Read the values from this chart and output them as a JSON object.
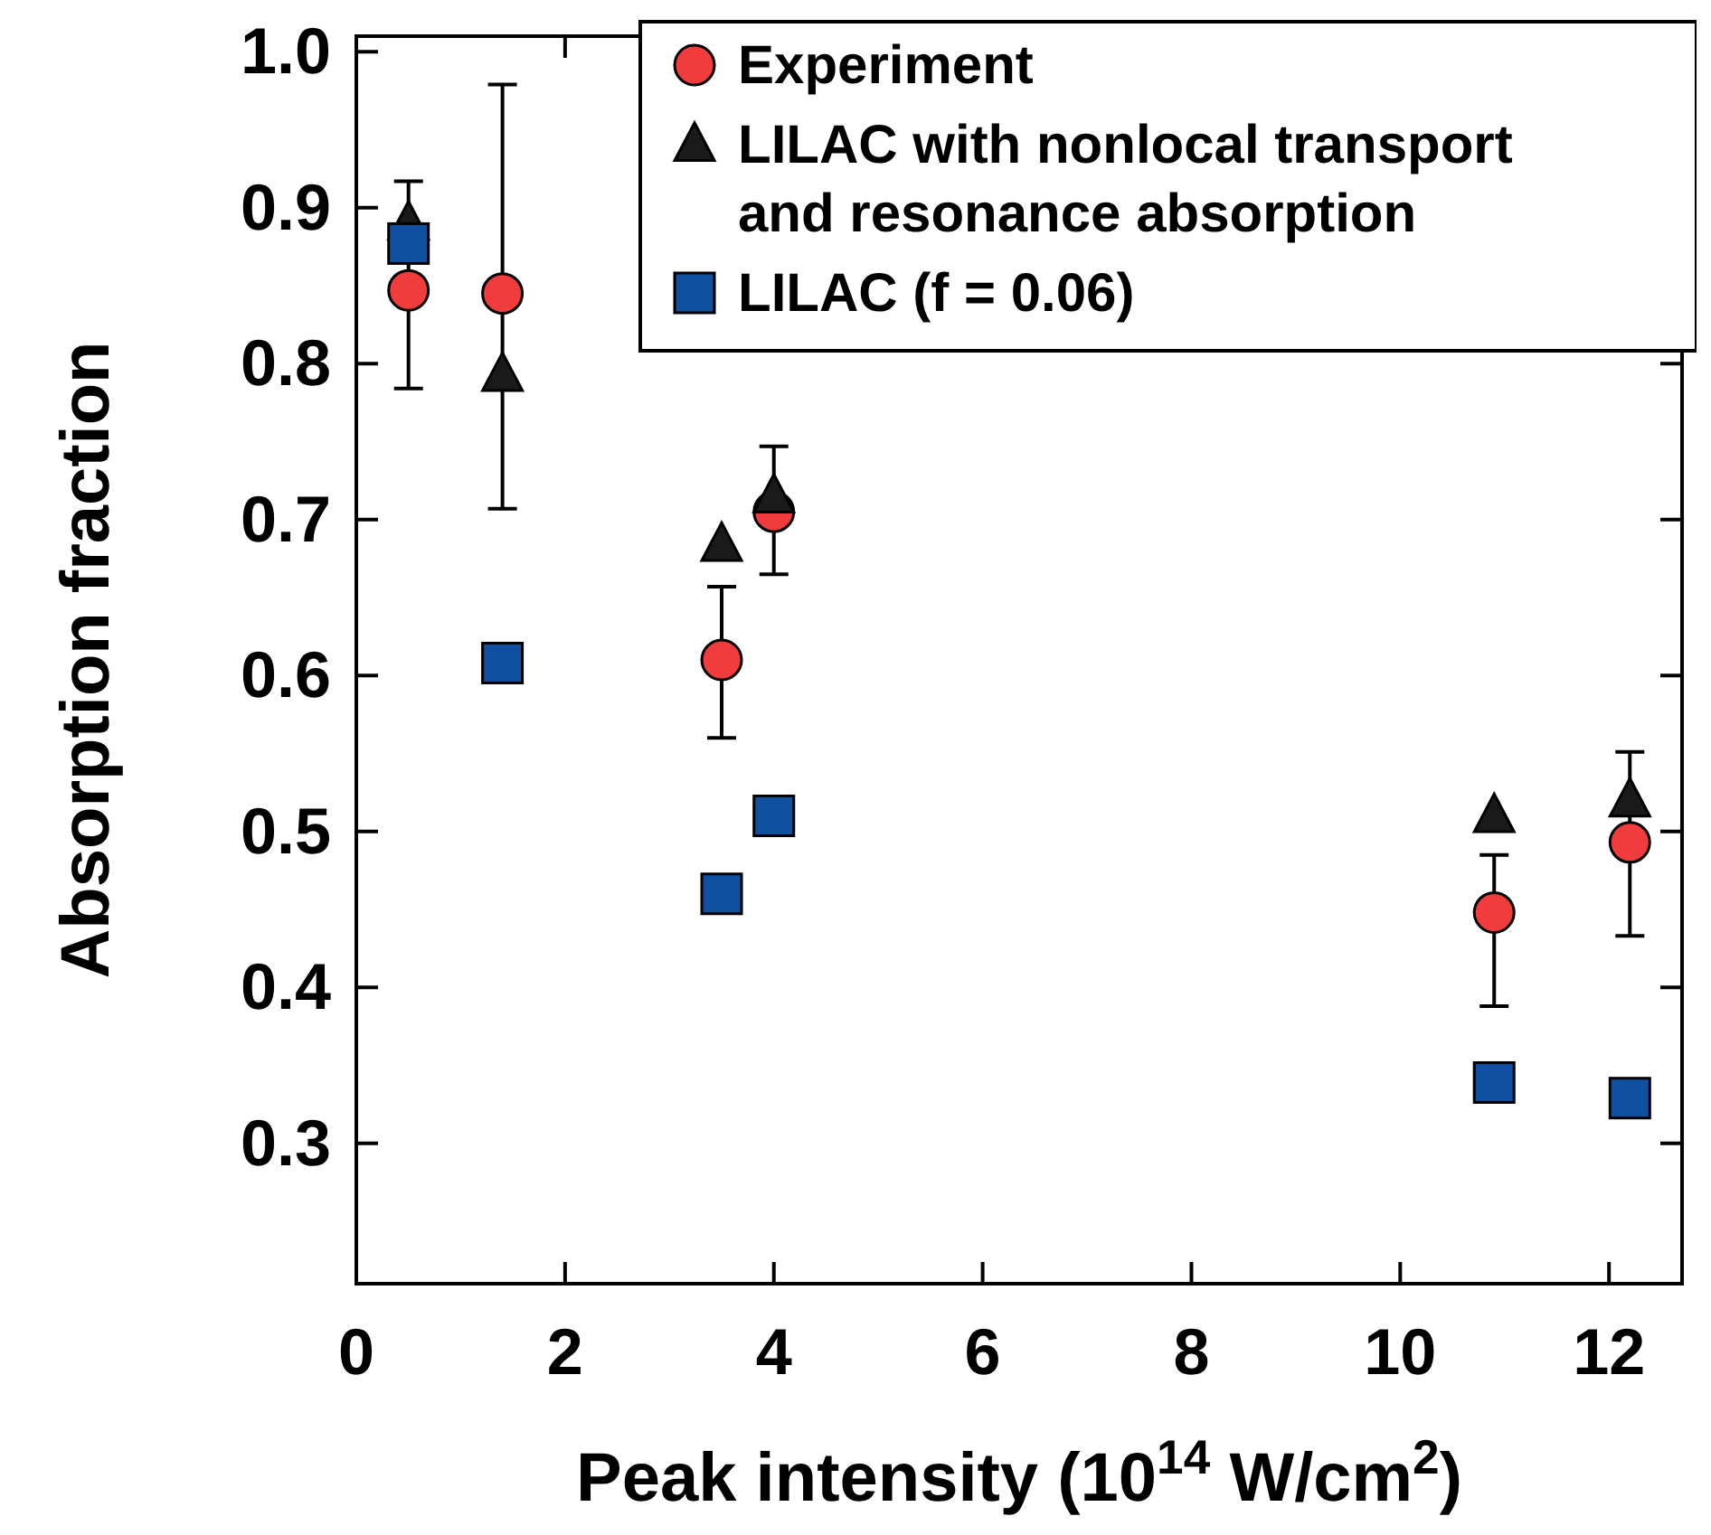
{
  "chart_data": {
    "type": "scatter",
    "xlabel": "Peak intensity (10$^{14}$ W/cm$^{2}$)",
    "ylabel": "Absorption fraction",
    "x": [
      0.5,
      1.4,
      3.5,
      4.0,
      10.9,
      12.2
    ],
    "xlim": [
      0,
      12.7
    ],
    "xticks": [
      0,
      2,
      4,
      6,
      8,
      10,
      12
    ],
    "ylim": [
      0.21,
      1.01
    ],
    "yticks": [
      {
        "value": 0.3,
        "label": "0.3"
      },
      {
        "value": 0.4,
        "label": "0.4"
      },
      {
        "value": 0.5,
        "label": "0.5"
      },
      {
        "value": 0.6,
        "label": "0.6"
      },
      {
        "value": 0.7,
        "label": "0.7"
      },
      {
        "value": 0.8,
        "label": "0.8"
      },
      {
        "value": 0.9,
        "label": "0.9"
      },
      {
        "value": 1.0,
        "label": "1.0"
      }
    ],
    "grid": false,
    "legend": "top right",
    "series": [
      {
        "name": "Experiment",
        "color": "#f03c3c",
        "marker": "circle",
        "values": [
          0.847,
          0.845,
          0.61,
          0.705,
          0.448,
          0.493
        ],
        "errors": [
          [
            0.784,
            0.917
          ],
          [
            0.707,
            0.979
          ],
          [
            0.56,
            0.657
          ],
          [
            0.665,
            0.747
          ],
          [
            0.388,
            0.485
          ],
          [
            0.433,
            0.551
          ]
        ]
      },
      {
        "name": "LILAC with nonlocal transport and resonance absorption",
        "color": "#1a1a1a",
        "marker": "triangle",
        "values": [
          0.89,
          0.793,
          0.684,
          0.715,
          0.51,
          0.52
        ]
      },
      {
        "name": "LILAC (f = 0.06)",
        "color": "#1050a0",
        "marker": "square",
        "values": [
          0.877,
          0.608,
          0.46,
          0.51,
          0.339,
          0.329
        ]
      }
    ]
  }
}
